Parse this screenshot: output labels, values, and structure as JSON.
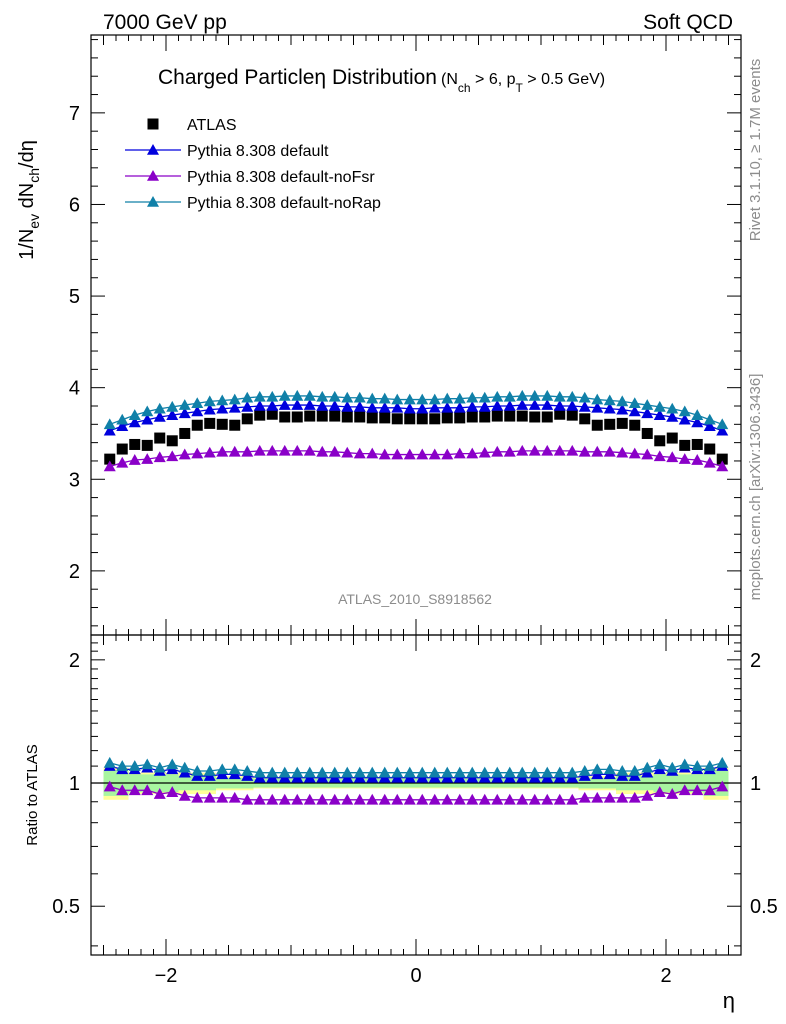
{
  "header": {
    "left": "7000 GeV pp",
    "right": "Soft QCD"
  },
  "title": {
    "main": "Charged Particle",
    "symbol": "η",
    "rest": " Distribution",
    "cuts": "(N",
    "cuts_sub": "ch",
    "cuts_mid": " > 6, p",
    "cuts_sub2": "T",
    "cuts_end": " > 0.5 GeV)"
  },
  "side_labels": {
    "rivet": "Rivet 3.1.10, ≥ 1.7M events",
    "mcplots": "mcplots.cern.ch [arXiv:1306.3436]"
  },
  "watermark": "ATLAS_2010_S8918562",
  "main_ylabel": "1/N_ev dN_ch/dη",
  "ratio_ylabel": "Ratio to ATLAS",
  "xlabel": "η",
  "colors": {
    "atlas": "#000000",
    "default": "#0000dd",
    "noFsr": "#8a00c8",
    "noRap": "#1080a8",
    "band_green": "#a8f5a0",
    "band_yellow": "#ffff99"
  },
  "chart_data": {
    "type": "scatter",
    "x": [
      -2.45,
      -2.35,
      -2.25,
      -2.15,
      -2.05,
      -1.95,
      -1.85,
      -1.75,
      -1.65,
      -1.55,
      -1.45,
      -1.35,
      -1.25,
      -1.15,
      -1.05,
      -0.95,
      -0.85,
      -0.75,
      -0.65,
      -0.55,
      -0.45,
      -0.35,
      -0.25,
      -0.15,
      -0.05,
      0.05,
      0.15,
      0.25,
      0.35,
      0.45,
      0.55,
      0.65,
      0.75,
      0.85,
      0.95,
      1.05,
      1.15,
      1.25,
      1.35,
      1.45,
      1.55,
      1.65,
      1.75,
      1.85,
      1.95,
      2.05,
      2.15,
      2.25,
      2.35,
      2.45
    ],
    "main": {
      "xlim": [
        -2.6,
        2.6
      ],
      "ylim": [
        1.3,
        7.85
      ],
      "yticks": [
        2,
        3,
        4,
        5,
        6,
        7
      ],
      "series": [
        {
          "name": "ATLAS",
          "marker": "square",
          "values": [
            3.22,
            3.33,
            3.38,
            3.37,
            3.45,
            3.42,
            3.5,
            3.59,
            3.61,
            3.6,
            3.59,
            3.66,
            3.7,
            3.71,
            3.68,
            3.68,
            3.69,
            3.69,
            3.69,
            3.68,
            3.68,
            3.67,
            3.67,
            3.66,
            3.66,
            3.66,
            3.66,
            3.67,
            3.67,
            3.68,
            3.68,
            3.69,
            3.69,
            3.69,
            3.68,
            3.68,
            3.71,
            3.7,
            3.66,
            3.59,
            3.6,
            3.61,
            3.59,
            3.5,
            3.42,
            3.45,
            3.37,
            3.38,
            3.33,
            3.22
          ]
        },
        {
          "name": "Pythia 8.308 default",
          "marker": "triangle",
          "values": [
            3.53,
            3.58,
            3.62,
            3.65,
            3.68,
            3.7,
            3.72,
            3.74,
            3.76,
            3.77,
            3.78,
            3.79,
            3.8,
            3.8,
            3.81,
            3.81,
            3.81,
            3.8,
            3.8,
            3.79,
            3.79,
            3.78,
            3.78,
            3.78,
            3.77,
            3.77,
            3.78,
            3.78,
            3.78,
            3.79,
            3.79,
            3.8,
            3.8,
            3.81,
            3.81,
            3.81,
            3.8,
            3.8,
            3.79,
            3.78,
            3.77,
            3.76,
            3.74,
            3.72,
            3.7,
            3.68,
            3.65,
            3.62,
            3.58,
            3.53
          ]
        },
        {
          "name": "Pythia 8.308 default-noFsr",
          "marker": "triangle",
          "values": [
            3.14,
            3.18,
            3.21,
            3.22,
            3.24,
            3.25,
            3.27,
            3.28,
            3.29,
            3.3,
            3.3,
            3.3,
            3.31,
            3.31,
            3.31,
            3.31,
            3.31,
            3.3,
            3.3,
            3.29,
            3.28,
            3.28,
            3.27,
            3.27,
            3.27,
            3.27,
            3.27,
            3.27,
            3.28,
            3.28,
            3.29,
            3.3,
            3.3,
            3.31,
            3.31,
            3.31,
            3.31,
            3.31,
            3.3,
            3.3,
            3.3,
            3.29,
            3.28,
            3.27,
            3.25,
            3.24,
            3.22,
            3.21,
            3.18,
            3.14
          ]
        },
        {
          "name": "Pythia 8.308 default-noRap",
          "marker": "triangle",
          "values": [
            3.6,
            3.65,
            3.7,
            3.74,
            3.77,
            3.79,
            3.81,
            3.83,
            3.85,
            3.86,
            3.87,
            3.89,
            3.9,
            3.9,
            3.91,
            3.91,
            3.91,
            3.9,
            3.9,
            3.89,
            3.89,
            3.88,
            3.88,
            3.87,
            3.87,
            3.87,
            3.87,
            3.88,
            3.88,
            3.89,
            3.89,
            3.9,
            3.9,
            3.91,
            3.91,
            3.91,
            3.9,
            3.9,
            3.89,
            3.87,
            3.86,
            3.85,
            3.83,
            3.81,
            3.79,
            3.77,
            3.74,
            3.7,
            3.65,
            3.6
          ]
        }
      ]
    },
    "ratio": {
      "xlim": [
        -2.6,
        2.6
      ],
      "ylim": [
        0.38,
        2.3
      ],
      "yticks": [
        0.5,
        1,
        2
      ],
      "xticks": [
        -2,
        0,
        2
      ],
      "bands": {
        "yellow_halfwidth": [
          0.09,
          0.09,
          0.06,
          0.06,
          0.06,
          0.06,
          0.06,
          0.06,
          0.06,
          0.04,
          0.04,
          0.04,
          0.03,
          0.03,
          0.03,
          0.03,
          0.03,
          0.03,
          0.03,
          0.03,
          0.03,
          0.03,
          0.03,
          0.03,
          0.03,
          0.03,
          0.03,
          0.03,
          0.03,
          0.03,
          0.03,
          0.03,
          0.03,
          0.03,
          0.03,
          0.03,
          0.03,
          0.03,
          0.04,
          0.04,
          0.04,
          0.06,
          0.06,
          0.06,
          0.06,
          0.06,
          0.06,
          0.06,
          0.09,
          0.09
        ],
        "green_halfwidth": [
          0.07,
          0.07,
          0.05,
          0.05,
          0.05,
          0.05,
          0.04,
          0.04,
          0.04,
          0.03,
          0.03,
          0.03,
          0.025,
          0.025,
          0.025,
          0.025,
          0.025,
          0.025,
          0.025,
          0.025,
          0.025,
          0.025,
          0.025,
          0.025,
          0.025,
          0.025,
          0.025,
          0.025,
          0.025,
          0.025,
          0.025,
          0.025,
          0.025,
          0.025,
          0.025,
          0.025,
          0.025,
          0.025,
          0.03,
          0.03,
          0.03,
          0.04,
          0.04,
          0.04,
          0.05,
          0.05,
          0.05,
          0.05,
          0.07,
          0.07
        ]
      },
      "series": [
        {
          "name": "Pythia 8.308 default",
          "values": [
            1.1,
            1.08,
            1.08,
            1.09,
            1.07,
            1.08,
            1.06,
            1.04,
            1.04,
            1.05,
            1.05,
            1.04,
            1.03,
            1.03,
            1.03,
            1.03,
            1.03,
            1.03,
            1.03,
            1.03,
            1.03,
            1.03,
            1.03,
            1.03,
            1.03,
            1.03,
            1.03,
            1.03,
            1.03,
            1.03,
            1.03,
            1.03,
            1.03,
            1.03,
            1.03,
            1.03,
            1.03,
            1.03,
            1.04,
            1.05,
            1.05,
            1.04,
            1.04,
            1.06,
            1.08,
            1.07,
            1.09,
            1.08,
            1.08,
            1.1
          ]
        },
        {
          "name": "Pythia 8.308 default-noFsr",
          "values": [
            0.98,
            0.96,
            0.96,
            0.96,
            0.94,
            0.95,
            0.93,
            0.92,
            0.92,
            0.92,
            0.92,
            0.91,
            0.91,
            0.91,
            0.91,
            0.91,
            0.91,
            0.91,
            0.91,
            0.91,
            0.91,
            0.91,
            0.91,
            0.91,
            0.91,
            0.91,
            0.91,
            0.91,
            0.91,
            0.91,
            0.91,
            0.91,
            0.91,
            0.91,
            0.91,
            0.91,
            0.91,
            0.91,
            0.92,
            0.92,
            0.92,
            0.92,
            0.92,
            0.93,
            0.95,
            0.94,
            0.96,
            0.96,
            0.96,
            0.98
          ]
        },
        {
          "name": "Pythia 8.308 default-noRap",
          "values": [
            1.12,
            1.1,
            1.1,
            1.11,
            1.09,
            1.11,
            1.09,
            1.07,
            1.07,
            1.08,
            1.08,
            1.07,
            1.06,
            1.06,
            1.06,
            1.06,
            1.06,
            1.06,
            1.06,
            1.06,
            1.06,
            1.06,
            1.06,
            1.06,
            1.06,
            1.06,
            1.06,
            1.06,
            1.06,
            1.06,
            1.06,
            1.06,
            1.06,
            1.06,
            1.06,
            1.06,
            1.06,
            1.06,
            1.07,
            1.08,
            1.08,
            1.07,
            1.07,
            1.09,
            1.11,
            1.09,
            1.11,
            1.1,
            1.1,
            1.12
          ]
        }
      ]
    }
  }
}
